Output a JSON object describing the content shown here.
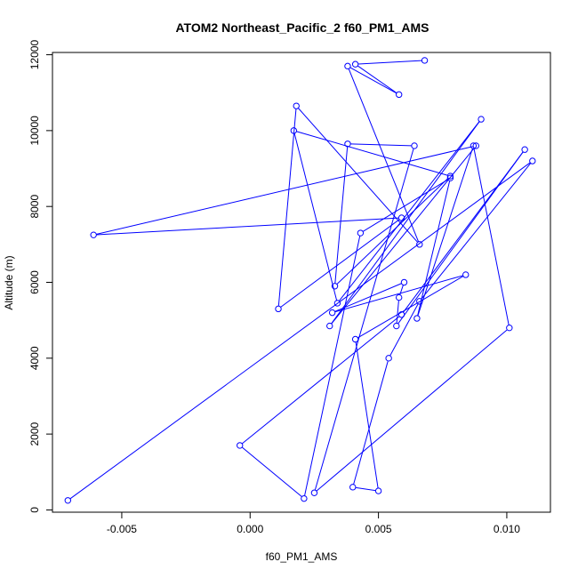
{
  "chart_data": {
    "type": "line",
    "title": "ATOM2 Northeast_Pacific_2 f60_PM1_AMS",
    "xlabel": "f60_PM1_AMS",
    "ylabel": "Altitude (m)",
    "xlim": [
      -0.0077,
      0.0117
    ],
    "ylim": [
      -60,
      12060
    ],
    "x_ticks": [
      -0.005,
      0.0,
      0.005,
      0.01
    ],
    "x_tick_labels": [
      "-0.005",
      "0.000",
      "0.005",
      "0.010"
    ],
    "y_ticks": [
      0,
      2000,
      4000,
      6000,
      8000,
      10000,
      12000
    ],
    "y_tick_labels": [
      "0",
      "2000",
      "4000",
      "6000",
      "8000",
      "10000",
      "12000"
    ],
    "grid": false,
    "series": [
      {
        "color": "#0000ff",
        "marker": "open-circle",
        "points": [
          {
            "x": 0.0068,
            "y": 11850
          },
          {
            "x": 0.0041,
            "y": 11750
          },
          {
            "x": 0.0058,
            "y": 10950
          },
          {
            "x": 0.0038,
            "y": 11700
          },
          {
            "x": 0.0066,
            "y": 7000
          },
          {
            "x": 0.0018,
            "y": 10650
          },
          {
            "x": 0.0011,
            "y": 5300
          },
          {
            "x": 0.0059,
            "y": 7700
          },
          {
            "x": -0.0061,
            "y": 7250
          },
          {
            "x": 0.0088,
            "y": 9600
          },
          {
            "x": 0.0031,
            "y": 4850
          },
          {
            "x": 0.009,
            "y": 10300
          },
          {
            "x": 0.0034,
            "y": 5450
          },
          {
            "x": 0.0017,
            "y": 10000
          },
          {
            "x": 0.0078,
            "y": 8800
          },
          {
            "x": 0.0033,
            "y": 5900
          },
          {
            "x": 0.0038,
            "y": 9650
          },
          {
            "x": 0.0064,
            "y": 9600
          },
          {
            "x": 0.0025,
            "y": 450
          },
          {
            "x": 0.0101,
            "y": 4800
          },
          {
            "x": 0.0087,
            "y": 9600
          },
          {
            "x": 0.0065,
            "y": 5050
          },
          {
            "x": 0.0078,
            "y": 8750
          },
          {
            "x": 0.0043,
            "y": 7300
          },
          {
            "x": 0.0021,
            "y": 300
          },
          {
            "x": -0.0004,
            "y": 1700
          },
          {
            "x": 0.0059,
            "y": 5150
          },
          {
            "x": 0.0107,
            "y": 9500
          },
          {
            "x": 0.0057,
            "y": 4850
          },
          {
            "x": 0.0058,
            "y": 5600
          },
          {
            "x": 0.006,
            "y": 6000
          },
          {
            "x": 0.0032,
            "y": 5200
          },
          {
            "x": 0.0084,
            "y": 6200
          },
          {
            "x": 0.0041,
            "y": 4500
          },
          {
            "x": 0.005,
            "y": 500
          },
          {
            "x": 0.004,
            "y": 600
          },
          {
            "x": 0.0054,
            "y": 4000
          },
          {
            "x": 0.0066,
            "y": 5500
          },
          {
            "x": 0.011,
            "y": 9200
          },
          {
            "x": -0.0071,
            "y": 250
          }
        ]
      }
    ]
  }
}
